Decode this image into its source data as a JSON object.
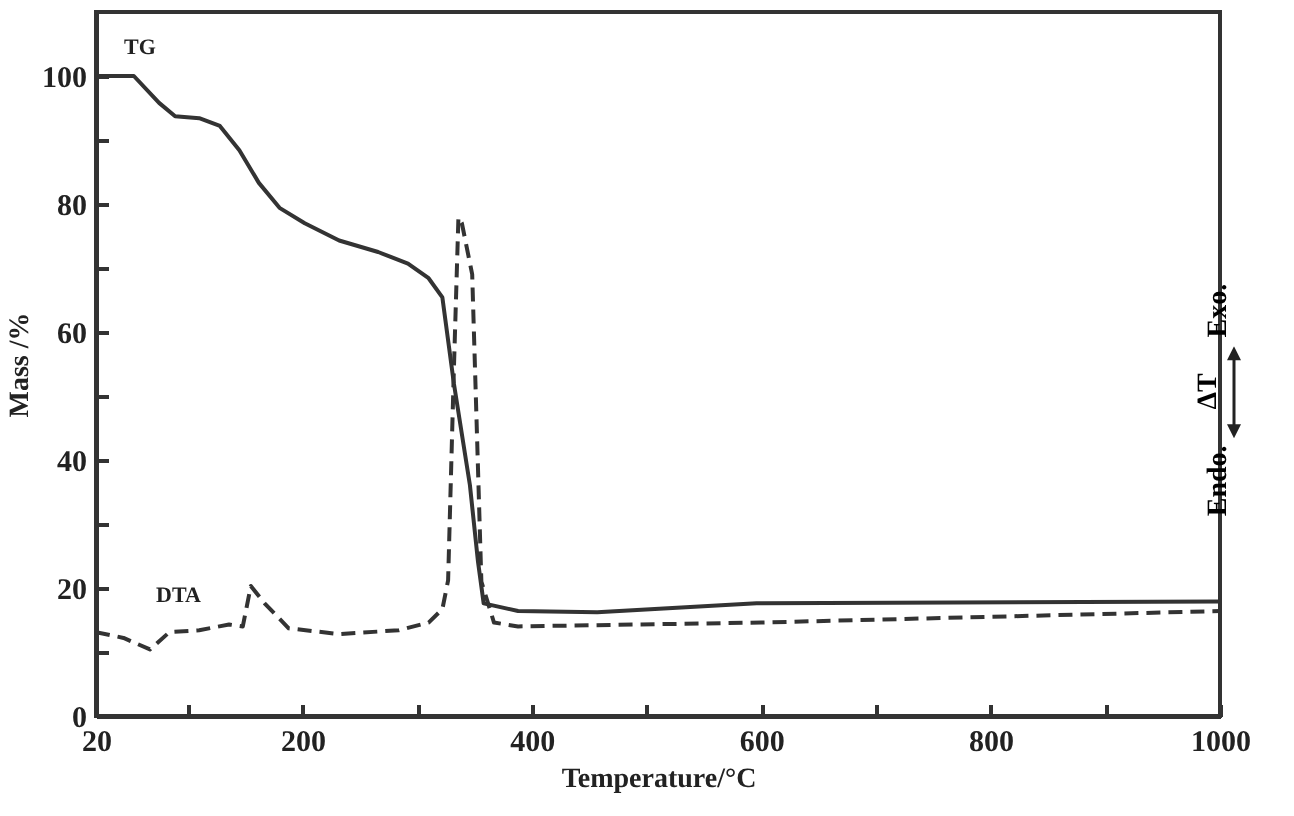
{
  "chart_data": {
    "type": "line",
    "xlabel": "Temperature/°C",
    "ylabel": "Mass /%",
    "y2label": "Endo. ΔT Exo.",
    "xlim": [
      20,
      1000
    ],
    "ylim": [
      0,
      110
    ],
    "xticks": [
      20,
      {
        "value": 100,
        "label": null
      },
      200,
      {
        "value": 300,
        "label": null
      },
      400,
      {
        "value": 500,
        "label": null
      },
      600,
      {
        "value": 700,
        "label": null
      },
      800,
      {
        "value": 900,
        "label": null
      },
      1000
    ],
    "yticks": [
      0,
      {
        "value": 10,
        "label": null
      },
      20,
      {
        "value": 30,
        "label": null
      },
      40,
      {
        "value": 50,
        "label": null
      },
      60,
      {
        "value": 70,
        "label": null
      },
      80,
      {
        "value": 90,
        "label": null
      },
      100
    ],
    "series": [
      {
        "name": "TG",
        "color": "#333333",
        "line_style": "solid",
        "x": [
          20,
          53,
          75,
          89,
          110,
          128,
          145,
          162,
          180,
          202,
          232,
          266,
          292,
          310,
          322,
          332,
          346,
          353,
          358,
          388,
          457,
          596,
          1000
        ],
        "values": [
          100,
          100,
          95.8,
          93.7,
          93.4,
          92.2,
          88.4,
          83.3,
          79.4,
          77,
          74.3,
          72.5,
          70.7,
          68.4,
          65.4,
          52,
          36.1,
          24.2,
          17.6,
          16.4,
          16.2,
          17.6,
          17.9
        ]
      },
      {
        "name": "DTA",
        "color": "#333333",
        "line_style": "dashed",
        "x": [
          20,
          44,
          67,
          84,
          110,
          136,
          148,
          155,
          167,
          188,
          232,
          284,
          310,
          322,
          327,
          332,
          336,
          339,
          348,
          351,
          356,
          367,
          388,
          600,
          1000
        ],
        "values": [
          13.1,
          12.2,
          10.4,
          13.1,
          13.4,
          14.3,
          14,
          20.3,
          17.6,
          13.7,
          12.8,
          13.4,
          14.6,
          16.7,
          21.2,
          54,
          77.9,
          77,
          69,
          51,
          21,
          14.6,
          14,
          14.6,
          16.4
        ]
      }
    ]
  }
}
